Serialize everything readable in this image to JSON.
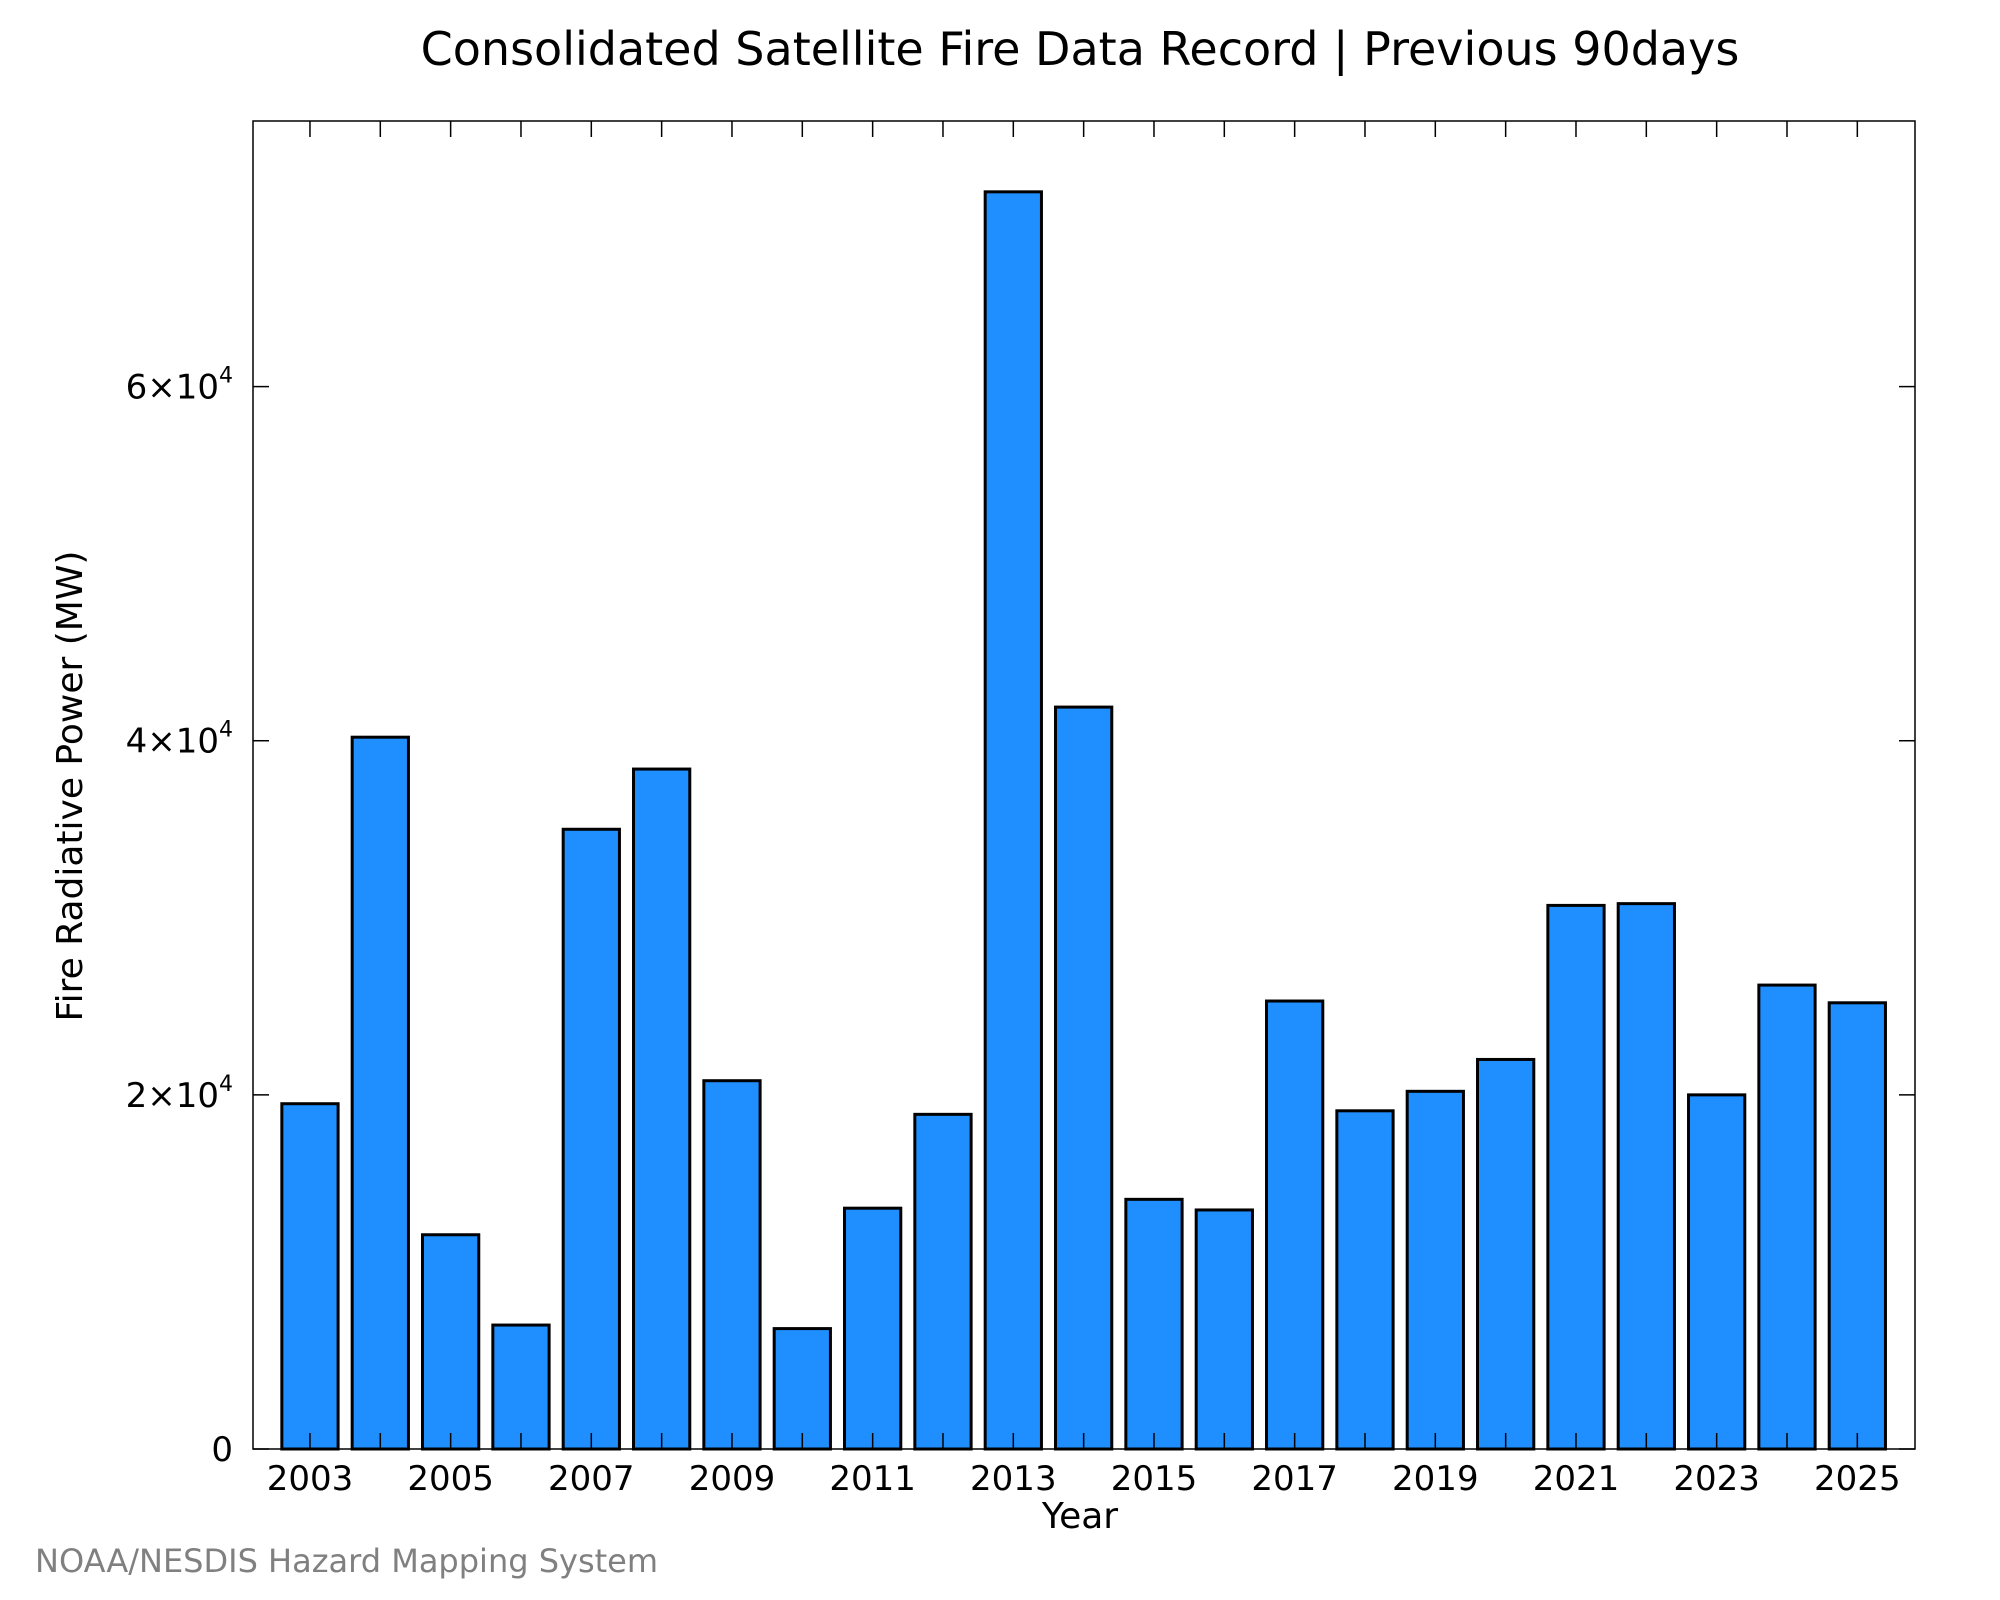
{
  "chart_data": {
    "type": "bar",
    "title": "Consolidated Satellite Fire Data Record | Previous 90days",
    "xlabel": "Year",
    "ylabel": "Fire Radiative Power (MW)",
    "categories": [
      "2003",
      "2004",
      "2005",
      "2006",
      "2007",
      "2008",
      "2009",
      "2010",
      "2011",
      "2012",
      "2013",
      "2014",
      "2015",
      "2016",
      "2017",
      "2018",
      "2019",
      "2020",
      "2021",
      "2022",
      "2023",
      "2024",
      "2025"
    ],
    "values": [
      19500,
      40200,
      12100,
      7000,
      35000,
      38400,
      20800,
      6800,
      13600,
      18900,
      71000,
      41900,
      14100,
      13500,
      25300,
      19100,
      20200,
      22000,
      30700,
      30800,
      20000,
      26200,
      25200
    ],
    "x_tick_labels": [
      "2003",
      "2005",
      "2007",
      "2009",
      "2011",
      "2013",
      "2015",
      "2017",
      "2019",
      "2021",
      "2023",
      "2025"
    ],
    "y_ticks": [
      {
        "value": 0,
        "base": "0",
        "exp": ""
      },
      {
        "value": 20000,
        "base": "2×10",
        "exp": "4"
      },
      {
        "value": 40000,
        "base": "4×10",
        "exp": "4"
      },
      {
        "value": 60000,
        "base": "6×10",
        "exp": "4"
      }
    ],
    "ylim": [
      0,
      75000
    ],
    "grid": false,
    "legend": "none",
    "bar_color": "#1f8fff"
  },
  "credit": "NOAA/NESDIS Hazard Mapping System"
}
